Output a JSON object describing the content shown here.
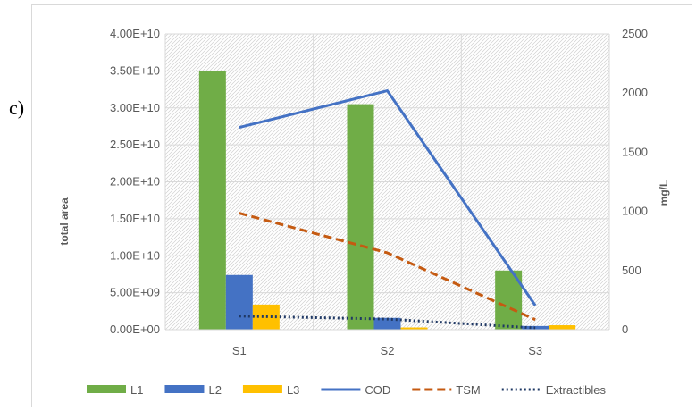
{
  "panel_label": "c)",
  "colors": {
    "L1": "#70ad47",
    "L2": "#4472c4",
    "L3": "#ffc000",
    "COD": "#4472c4",
    "TSM": "#c55a11",
    "Extractibles": "#1f3864",
    "grid": "#d9d9d9",
    "hatch": "#d0d0d0",
    "tick_text": "#595959"
  },
  "chart_data": {
    "type": "bar",
    "categories": [
      "S1",
      "S2",
      "S3"
    ],
    "series": [
      {
        "name": "L1",
        "type": "bar",
        "axis": "left",
        "values": [
          35000000000.0,
          30500000000.0,
          8000000000.0
        ]
      },
      {
        "name": "L2",
        "type": "bar",
        "axis": "left",
        "values": [
          7400000000.0,
          1600000000.0,
          500000000.0
        ]
      },
      {
        "name": "L3",
        "type": "bar",
        "axis": "left",
        "values": [
          3400000000.0,
          300000000.0,
          600000000.0
        ]
      },
      {
        "name": "COD",
        "type": "line",
        "style": "solid",
        "axis": "right",
        "values": [
          1710,
          2020,
          205
        ]
      },
      {
        "name": "TSM",
        "type": "line",
        "style": "dashed",
        "axis": "right",
        "values": [
          985,
          650,
          85
        ]
      },
      {
        "name": "Extractibles",
        "type": "line",
        "style": "dotted",
        "axis": "right",
        "values": [
          115,
          90,
          15
        ]
      }
    ],
    "ylabel": "total area",
    "y2label": "mg/L",
    "ylim": [
      0,
      40000000000.0
    ],
    "y2lim": [
      0,
      2500
    ],
    "yticks": [
      "0.00E+00",
      "5.00E+09",
      "1.00E+10",
      "1.50E+10",
      "2.00E+10",
      "2.50E+10",
      "3.00E+10",
      "3.50E+10",
      "4.00E+10"
    ],
    "y2ticks": [
      "0",
      "500",
      "1000",
      "1500",
      "2000",
      "2500"
    ],
    "legend_position": "bottom",
    "grid": true
  }
}
